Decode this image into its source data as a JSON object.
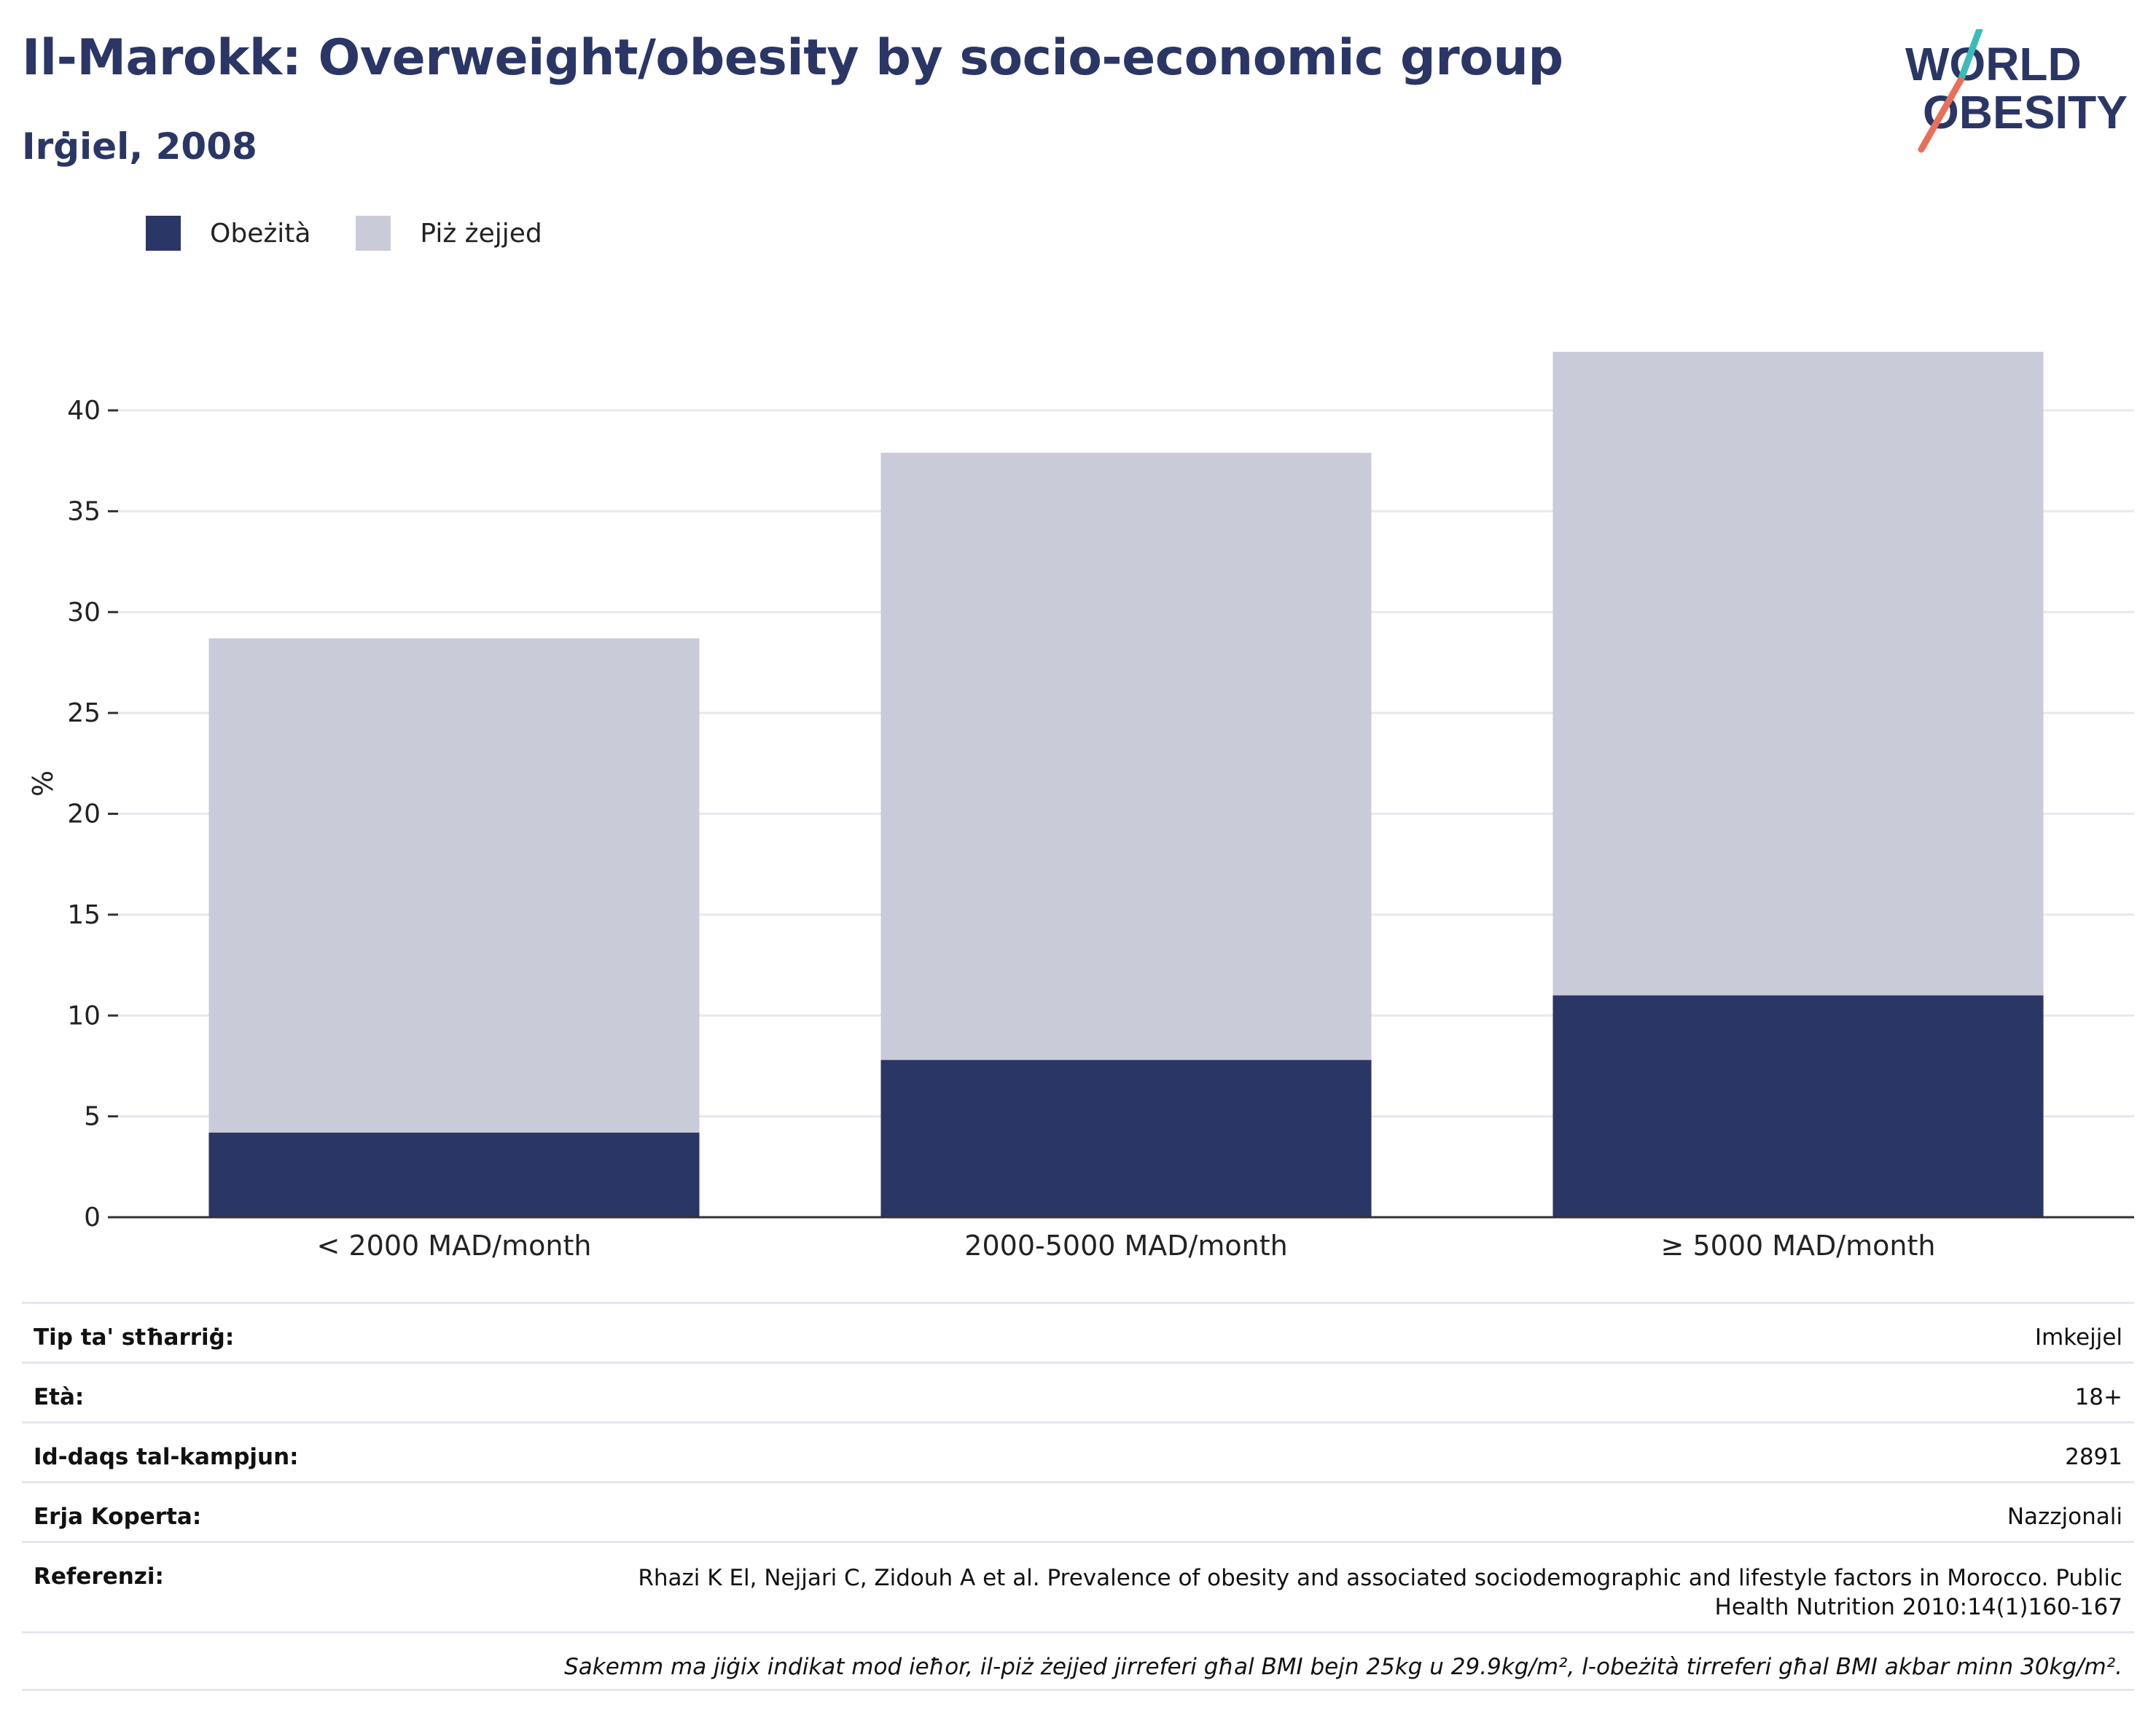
{
  "header": {
    "title": "Il-Marokk: Overweight/obesity by socio-economic group",
    "subtitle": "Irġiel, 2008"
  },
  "logo": {
    "line1": "WORLD",
    "line2": "OBESITY",
    "colors": {
      "text": "#2a3665",
      "slash_top": "#3bbcb8",
      "slash_bottom": "#e8705a"
    }
  },
  "legend": [
    {
      "label": "Obeżità",
      "color": "#2a3665"
    },
    {
      "label": "Piż żejjed",
      "color": "#c9ccd8"
    }
  ],
  "chart_data": {
    "type": "bar",
    "stacked": true,
    "categories": [
      "< 2000 MAD/month",
      "2000-5000 MAD/month",
      "≥ 5000 MAD/month"
    ],
    "series": [
      {
        "name": "Obeżità",
        "values": [
          4.2,
          7.8,
          11.0
        ],
        "color": "#2a3665"
      },
      {
        "name": "Piż żejjed",
        "values": [
          24.5,
          30.1,
          31.9
        ],
        "color": "#c9ccd8"
      }
    ],
    "ylabel": "%",
    "xlabel": "",
    "ylim": [
      0,
      43
    ],
    "yticks": [
      0,
      5,
      10,
      15,
      20,
      25,
      30,
      35,
      40
    ],
    "grid": true
  },
  "info": {
    "rows": [
      {
        "key": "Tip ta' stħarriġ:",
        "value": "Imkejjel"
      },
      {
        "key": "Età:",
        "value": "18+"
      },
      {
        "key": "Id-daqs tal-kampjun:",
        "value": "2891"
      },
      {
        "key": "Erja Koperta:",
        "value": "Nazzjonali"
      },
      {
        "key": "Referenzi:",
        "value": "Rhazi K El, Nejjari C, Zidouh A et al. Prevalence of obesity and associated sociodemographic and lifestyle factors in Morocco. Public Health Nutrition 2010:14(1)160-167"
      }
    ],
    "note": "Sakemm ma jiġix indikat mod ieħor, il-piż żejjed jirreferi għal BMI bejn 25kg u 29.9kg/m², l-obeżità tirreferi għal BMI akbar minn 30kg/m²."
  }
}
